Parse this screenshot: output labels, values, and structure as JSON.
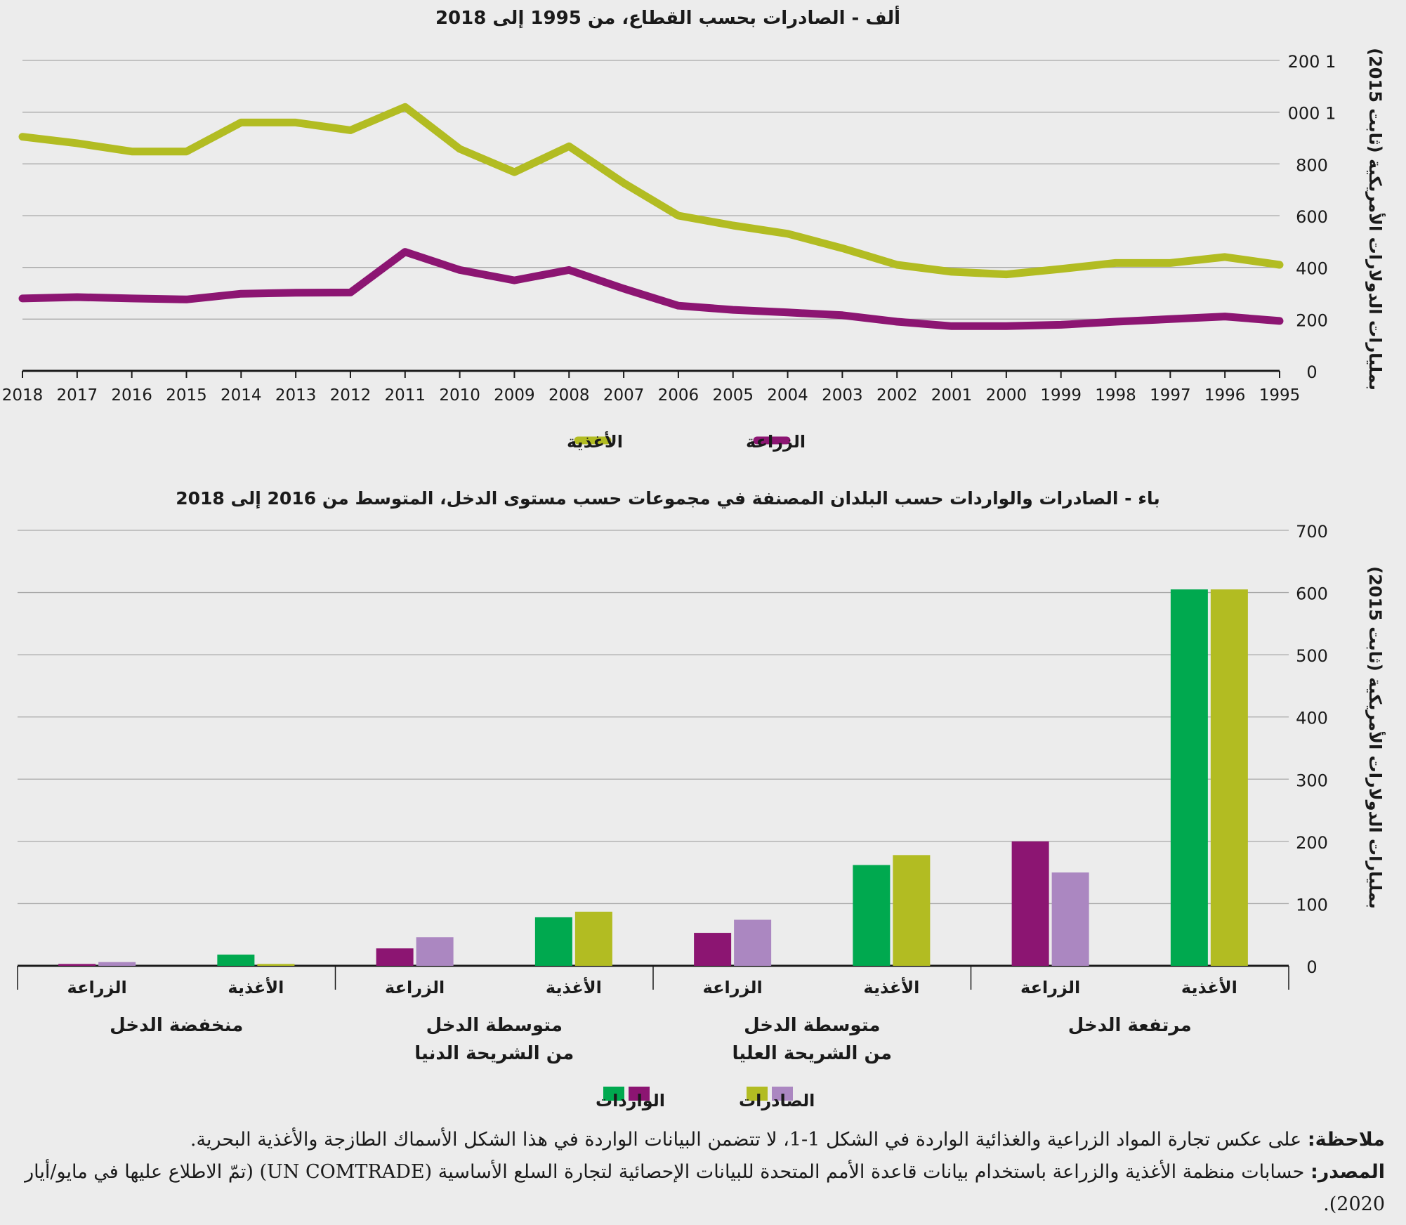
{
  "colors": {
    "food": "#b2bc22",
    "agri": "#8c1572",
    "food_import": "#00a94f",
    "agri_import": "#ab87c1",
    "grid": "#a8a8a8",
    "axis": "#1a1a1a"
  },
  "chart_data": [
    {
      "type": "line",
      "title": "ألف - الصادرات بحسب القطاع، من 1995 إلى 2018",
      "ylabel": "بمليارات الدولارات الأمريكية (ثابت 2015)",
      "ylim": [
        0,
        1200
      ],
      "yticks": [
        0,
        200,
        400,
        600,
        800,
        1000,
        1200
      ],
      "ytick_labels": [
        "0",
        "200",
        "400",
        "600",
        "800",
        "1 000",
        "1 200"
      ],
      "x": [
        2018,
        2017,
        2016,
        2015,
        2014,
        2013,
        2012,
        2011,
        2010,
        2009,
        2008,
        2007,
        2006,
        2005,
        2004,
        2003,
        2002,
        2001,
        2000,
        1999,
        1998,
        1997,
        1996,
        1995
      ],
      "series": [
        {
          "name": "الأغذية",
          "color": "#b2bc22",
          "values": [
            905,
            880,
            848,
            848,
            960,
            960,
            930,
            1020,
            858,
            768,
            868,
            726,
            600,
            562,
            530,
            474,
            410,
            383,
            373,
            394,
            417,
            417,
            440,
            410
          ]
        },
        {
          "name": "الزراعة",
          "color": "#8c1572",
          "values": [
            280,
            285,
            280,
            276,
            298,
            302,
            303,
            460,
            390,
            350,
            390,
            318,
            252,
            236,
            226,
            215,
            190,
            173,
            173,
            178,
            190,
            200,
            210,
            193
          ]
        }
      ],
      "legend": [
        "الزراعة",
        "الأغذية"
      ],
      "grid": true
    },
    {
      "type": "bar",
      "title": "باء - الصادرات والواردات حسب البلدان المصنفة في مجموعات حسب مستوى الدخل، المتوسط من 2016 إلى 2018",
      "ylabel": "بمليارات الدولارات الأمريكية (ثابت 2015)",
      "ylim": [
        0,
        700
      ],
      "yticks": [
        0,
        100,
        200,
        300,
        400,
        500,
        600,
        700
      ],
      "groups": [
        {
          "label": "مرتفعة الدخل",
          "label2": ""
        },
        {
          "label": "متوسطة الدخل",
          "label2": "من الشريحة العليا"
        },
        {
          "label": "متوسطة الدخل",
          "label2": "من الشريحة الدنيا"
        },
        {
          "label": "منخفضة الدخل",
          "label2": ""
        }
      ],
      "categories": [
        {
          "group": 0,
          "label": "الأغذية",
          "import": 605,
          "export": 605,
          "import_color": "#00a94f",
          "export_color": "#b2bc22"
        },
        {
          "group": 0,
          "label": "الزراعة",
          "import": 200,
          "export": 150,
          "import_color": "#8c1572",
          "export_color": "#ab87c1"
        },
        {
          "group": 1,
          "label": "الأغذية",
          "import": 162,
          "export": 178,
          "import_color": "#00a94f",
          "export_color": "#b2bc22"
        },
        {
          "group": 1,
          "label": "الزراعة",
          "import": 53,
          "export": 74,
          "import_color": "#8c1572",
          "export_color": "#ab87c1"
        },
        {
          "group": 2,
          "label": "الأغذية",
          "import": 78,
          "export": 87,
          "import_color": "#00a94f",
          "export_color": "#b2bc22"
        },
        {
          "group": 2,
          "label": "الزراعة",
          "import": 28,
          "export": 46,
          "import_color": "#8c1572",
          "export_color": "#ab87c1"
        },
        {
          "group": 3,
          "label": "الأغذية",
          "import": 18,
          "export": 3,
          "import_color": "#00a94f",
          "export_color": "#b2bc22"
        },
        {
          "group": 3,
          "label": "الزراعة",
          "import": 3,
          "export": 6,
          "import_color": "#8c1572",
          "export_color": "#ab87c1"
        }
      ],
      "legend": [
        "الصادرات",
        "الواردات"
      ],
      "grid": true
    }
  ],
  "notes": {
    "note_label": "ملاحظة:",
    "note_text": "على عكس تجارة المواد الزراعية والغذائية الواردة في الشكل 1-1، لا تتضمن البيانات الواردة في هذا الشكل الأسماك الطازجة والأغذية البحرية.",
    "source_label": "المصدر:",
    "source_text": "حسابات منظمة الأغذية والزراعة باستخدام بيانات قاعدة الأمم المتحدة للبيانات الإحصائية لتجارة السلع الأساسية (UN COMTRADE) (تمّ الاطلاع عليها في مايو/أيار 2020)."
  }
}
